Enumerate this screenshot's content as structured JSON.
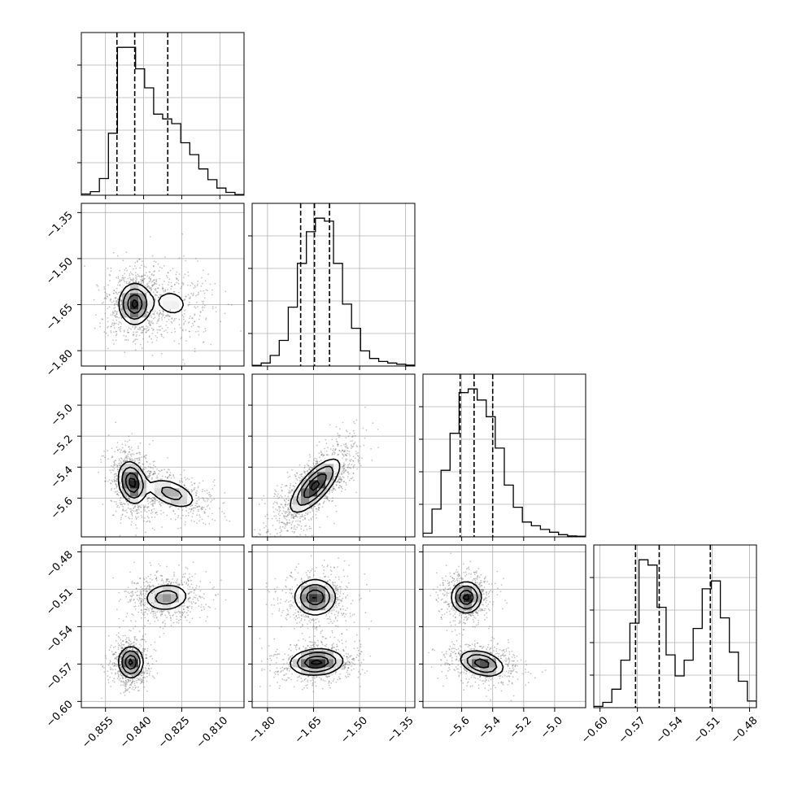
{
  "chart_data": {
    "type": "corner",
    "grid": true,
    "colors": {
      "line": "#000000",
      "grid": "#b0b0b0",
      "scatter": "#555555",
      "frame": "#000000"
    },
    "parameters": [
      {
        "range": [
          -0.8645,
          -0.8005
        ],
        "ticks": [
          -0.855,
          -0.84,
          -0.825,
          -0.81
        ],
        "tick_labels": [
          "−0.855",
          "−0.840",
          "−0.825",
          "−0.810"
        ],
        "quantiles": [
          -0.8505,
          -0.8435,
          -0.8305
        ]
      },
      {
        "range": [
          -1.85,
          -1.32
        ],
        "ticks": [
          -1.8,
          -1.65,
          -1.5,
          -1.35
        ],
        "tick_labels": [
          "−1.80",
          "−1.65",
          "−1.50",
          "−1.35"
        ],
        "quantiles": [
          -1.692,
          -1.647,
          -1.598
        ]
      },
      {
        "range": [
          -5.85,
          -4.8
        ],
        "ticks": [
          -5.6,
          -5.4,
          -5.2,
          -5.0
        ],
        "tick_labels": [
          "−5.6",
          "−5.4",
          "−5.2",
          "−5.0"
        ],
        "quantiles": [
          -5.61,
          -5.52,
          -5.4
        ]
      },
      {
        "range": [
          -0.605,
          -0.4745
        ],
        "ticks": [
          -0.6,
          -0.57,
          -0.54,
          -0.51,
          -0.48
        ],
        "tick_labels": [
          "−0.60",
          "−0.57",
          "−0.54",
          "−0.51",
          "−0.48"
        ],
        "quantiles": [
          -0.5715,
          -0.5525,
          -0.5115
        ]
      }
    ],
    "histograms": [
      {
        "param": 0,
        "edges": [
          -0.8645,
          -0.8005
        ],
        "counts": [
          0.5,
          1.5,
          7,
          26,
          62,
          62,
          53,
          45,
          34,
          32,
          30,
          22,
          17,
          11,
          6.5,
          3,
          1.2,
          0.3
        ]
      },
      {
        "param": 1,
        "edges": [
          -1.85,
          -1.32
        ],
        "counts": [
          0.5,
          2,
          7,
          17,
          39,
          68,
          89,
          98,
          96,
          68,
          41,
          25,
          10,
          5,
          3,
          2,
          1.2,
          0.6
        ]
      },
      {
        "param": 2,
        "edges": [
          -5.85,
          -4.8
        ],
        "counts": [
          2,
          15,
          36,
          56,
          78,
          80,
          74,
          65,
          48,
          28,
          16,
          8,
          6,
          4,
          2.5,
          1.2,
          0.5,
          0.3
        ]
      },
      {
        "param": 3,
        "edges": [
          -0.605,
          -0.4745
        ],
        "counts": [
          0.5,
          2,
          7,
          18,
          32,
          56,
          54,
          38,
          20,
          12,
          18,
          30,
          45,
          48,
          34,
          21,
          10,
          2.5
        ]
      }
    ],
    "pairs": [
      {
        "x": 0,
        "y": 1,
        "modes": [
          {
            "x": -0.8435,
            "y": -1.648,
            "sx": 0.0032,
            "sy": 0.035,
            "rho": 0.0,
            "w": 0.7
          },
          {
            "x": -0.829,
            "y": -1.645,
            "sx": 0.0055,
            "sy": 0.038,
            "rho": -0.15,
            "w": 0.3
          }
        ]
      },
      {
        "x": 0,
        "y": 2,
        "modes": [
          {
            "x": -0.8445,
            "y": -5.5,
            "sx": 0.0028,
            "sy": 0.07,
            "rho": -0.2,
            "w": 0.6
          },
          {
            "x": -0.829,
            "y": -5.57,
            "sx": 0.0055,
            "sy": 0.055,
            "rho": -0.5,
            "w": 0.4
          }
        ]
      },
      {
        "x": 1,
        "y": 2,
        "modes": [
          {
            "x": -1.645,
            "y": -5.52,
            "sx": 0.042,
            "sy": 0.09,
            "rho": 0.75,
            "w": 1.0
          }
        ]
      },
      {
        "x": 0,
        "y": 3,
        "modes": [
          {
            "x": -0.845,
            "y": -0.5685,
            "sx": 0.0025,
            "sy": 0.0065,
            "rho": 0.0,
            "w": 0.5
          },
          {
            "x": -0.831,
            "y": -0.5165,
            "sx": 0.0048,
            "sy": 0.006,
            "rho": 0.1,
            "w": 0.5
          }
        ]
      },
      {
        "x": 1,
        "y": 3,
        "modes": [
          {
            "x": -1.645,
            "y": -0.5165,
            "sx": 0.035,
            "sy": 0.0075,
            "rho": 0.0,
            "w": 0.5
          },
          {
            "x": -1.64,
            "y": -0.5685,
            "sx": 0.045,
            "sy": 0.0055,
            "rho": 0.1,
            "w": 0.5
          }
        ]
      },
      {
        "x": 2,
        "y": 3,
        "modes": [
          {
            "x": -5.57,
            "y": -0.5165,
            "sx": 0.05,
            "sy": 0.0065,
            "rho": 0.0,
            "w": 0.5
          },
          {
            "x": -5.47,
            "y": -0.5695,
            "sx": 0.075,
            "sy": 0.0055,
            "rho": -0.35,
            "w": 0.5
          }
        ]
      }
    ],
    "contour_levels": [
      0.39,
      0.86,
      1.39,
      1.9
    ]
  }
}
